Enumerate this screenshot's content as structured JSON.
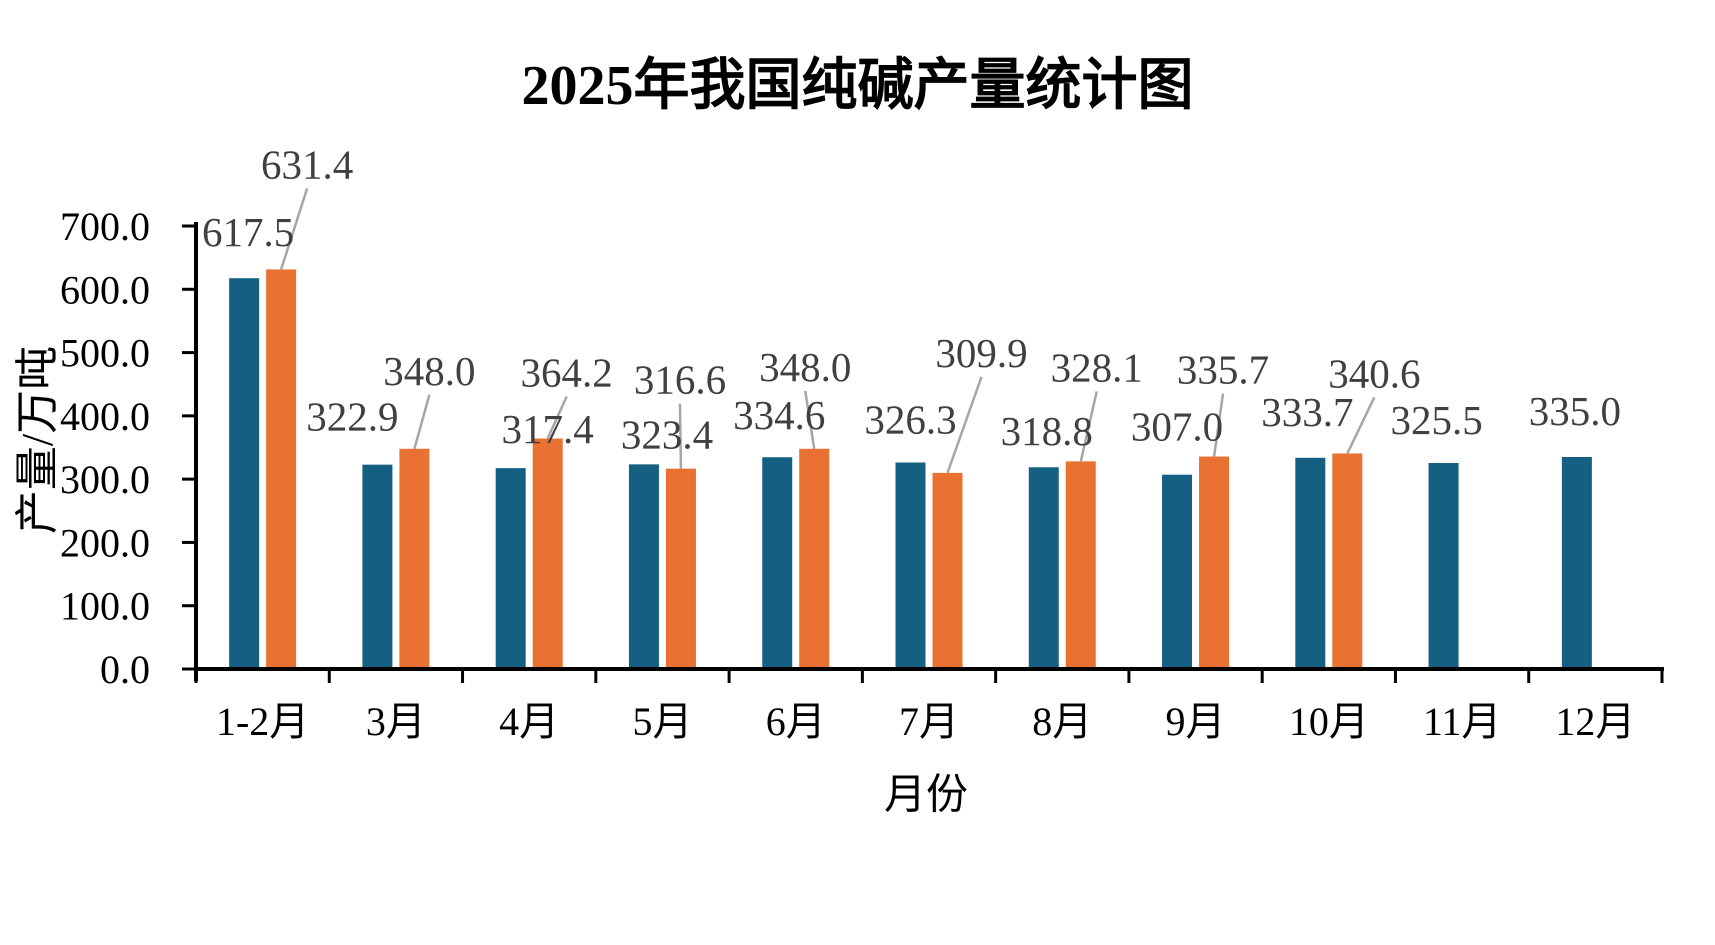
{
  "page": {
    "background_color": "#FFFFFF"
  },
  "chart_data": {
    "type": "bar",
    "title": "2025年我国纯碱产量统计图",
    "xlabel": "月份",
    "ylabel": "产量/万吨",
    "categories": [
      "1-2月",
      "3月",
      "4月",
      "5月",
      "6月",
      "7月",
      "8月",
      "9月",
      "10月",
      "11月",
      "12月"
    ],
    "series": [
      {
        "name": "blue-series",
        "color": "#156082",
        "values": [
          617.5,
          322.9,
          317.4,
          323.4,
          334.6,
          326.3,
          318.8,
          307.0,
          333.7,
          325.5,
          335.0
        ]
      },
      {
        "name": "orange-series",
        "color": "#E97132",
        "values": [
          631.4,
          348.0,
          364.2,
          316.6,
          348.0,
          309.9,
          328.1,
          335.7,
          340.6,
          null,
          null
        ]
      }
    ],
    "ylim": [
      0,
      700
    ],
    "ytick_step": 100,
    "ytick_labels": [
      "0.0",
      "100.0",
      "200.0",
      "300.0",
      "400.0",
      "500.0",
      "600.0",
      "700.0"
    ],
    "data_label_decimals": 1,
    "grid": false,
    "legend": "none",
    "axis_color": "#000000",
    "data_label_color": "#404040",
    "leader_line_color": "#A6A6A6",
    "label_offsets": {
      "blue": [
        [
          4,
          -1
        ],
        [
          -25,
          -3
        ],
        [
          37,
          6
        ],
        [
          23,
          15
        ],
        [
          2,
          3
        ],
        [
          0,
          2
        ],
        [
          3,
          9
        ],
        [
          0,
          -3
        ],
        [
          -3,
          -1
        ],
        [
          -7,
          2
        ],
        [
          -2,
          -1
        ]
      ],
      "orange": [
        [
          26,
          -105
        ],
        [
          15,
          -78
        ],
        [
          19,
          -66
        ],
        [
          -1,
          -89
        ],
        [
          -9,
          -82
        ],
        [
          34,
          -120
        ],
        [
          16,
          -94
        ],
        [
          9,
          -87
        ],
        [
          27,
          -80
        ]
      ]
    }
  }
}
